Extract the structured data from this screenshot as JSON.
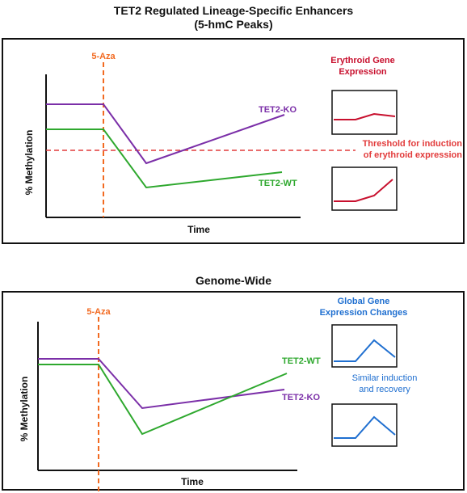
{
  "top": {
    "title_line1": "TET2 Regulated Lineage-Specific Enhancers",
    "title_line2": "(5-hmC Peaks)",
    "marker": "5-Aza",
    "ylabel": "% Methylation",
    "xlabel": "Time",
    "series_ko": "TET2-KO",
    "series_wt": "TET2-WT",
    "inset_title_line1": "Erythroid Gene",
    "inset_title_line2": "Expression",
    "threshold_line1": "Threshold for induction",
    "threshold_line2": "of erythroid expression"
  },
  "bottom": {
    "title": "Genome-Wide",
    "marker": "5-Aza",
    "ylabel": "% Methylation",
    "xlabel": "Time",
    "series_wt": "TET2-WT",
    "series_ko": "TET2-KO",
    "inset_title_line1": "Global Gene",
    "inset_title_line2": "Expression Changes",
    "note_line1": "Similar induction",
    "note_line2": "and recovery"
  },
  "colors": {
    "ko": "#7B2FA8",
    "wt": "#2EA82E",
    "marker": "#F26A21",
    "threshold": "#E23B3B",
    "erythroid": "#C8102E",
    "global": "#1F6FD0"
  }
}
